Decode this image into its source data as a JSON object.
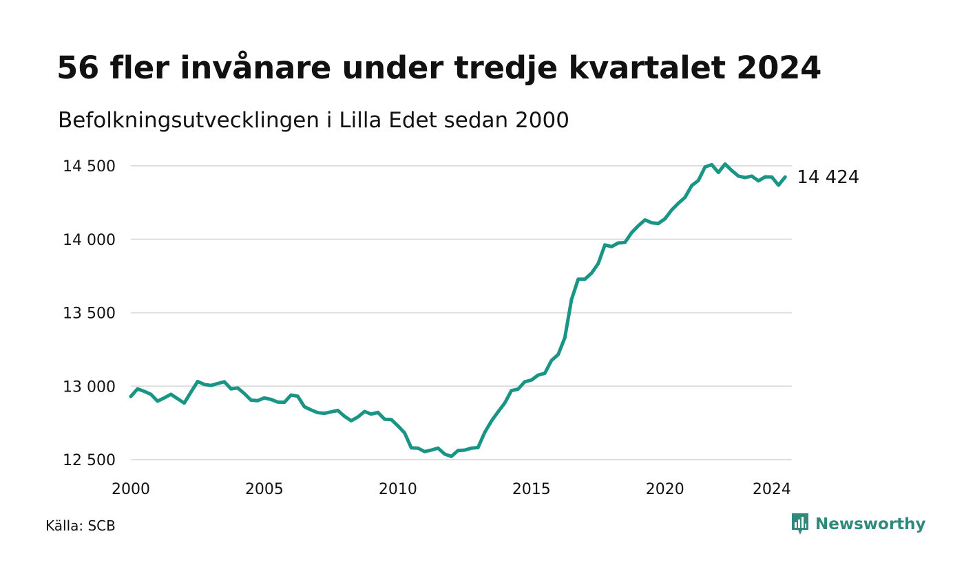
{
  "header": {
    "title": "56 fler invånare under tredje kvartalet 2024",
    "subtitle": "Befolkningsutvecklingen i Lilla Edet sedan 2000"
  },
  "footer": {
    "source": "Källa: SCB",
    "brand": "Newsworthy"
  },
  "colors": {
    "line": "#1a9585",
    "grid": "#dddddd",
    "brand": "#2f8a7b"
  },
  "icons": {
    "brand_logo": "bar-chart-speech-bubble-icon"
  },
  "chart_data": {
    "type": "line",
    "xlim": [
      2000,
      2024.75
    ],
    "ylim": [
      12500,
      14500
    ],
    "x_ticks": [
      2000,
      2005,
      2010,
      2015,
      2020,
      2024
    ],
    "y_ticks": [
      12500,
      13000,
      13500,
      14000,
      14500
    ],
    "y_tick_labels": [
      "12 500",
      "13 000",
      "13 500",
      "14 000",
      "14 500"
    ],
    "grid": "horizontal",
    "end_label": "14 424",
    "series": [
      {
        "x_start": 2000,
        "x_step": 0.25,
        "values": [
          12930,
          12982,
          12965,
          12945,
          12898,
          12920,
          12945,
          12915,
          12885,
          12960,
          13032,
          13012,
          13005,
          13018,
          13030,
          12982,
          12988,
          12950,
          12905,
          12902,
          12920,
          12910,
          12892,
          12890,
          12940,
          12932,
          12860,
          12838,
          12820,
          12815,
          12825,
          12835,
          12795,
          12765,
          12790,
          12828,
          12810,
          12822,
          12775,
          12773,
          12730,
          12682,
          12580,
          12578,
          12555,
          12565,
          12578,
          12538,
          12522,
          12562,
          12565,
          12578,
          12582,
          12685,
          12762,
          12825,
          12885,
          12970,
          12980,
          13030,
          13042,
          13075,
          13088,
          13175,
          13215,
          13330,
          13590,
          13728,
          13728,
          13770,
          13835,
          13962,
          13950,
          13975,
          13978,
          14045,
          14092,
          14132,
          14112,
          14108,
          14140,
          14200,
          14245,
          14285,
          14365,
          14400,
          14492,
          14508,
          14455,
          14512,
          14468,
          14430,
          14420,
          14430,
          14398,
          14425,
          14424,
          14368,
          14424
        ]
      }
    ]
  }
}
